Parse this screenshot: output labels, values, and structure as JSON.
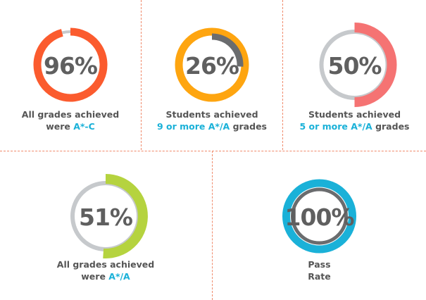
{
  "colors": {
    "track": "#c6c9cc",
    "dark": "#6a6c6e",
    "accent_text": "#1ab1d8",
    "divider": "#f08a6b",
    "value_text": "#5f5f5f"
  },
  "chart_data": [
    {
      "type": "donut",
      "value": 96,
      "label": "96%",
      "caption_line1": "All grades achieved",
      "caption_prefix": "were ",
      "caption_highlight": "A*-C",
      "caption_suffix": "",
      "main_color": "#fb5b2e",
      "arc_color": "#c6c9cc",
      "arc_width": "thin"
    },
    {
      "type": "donut",
      "value": 26,
      "label": "26%",
      "caption_line1": "Students achieved",
      "caption_prefix": "",
      "caption_highlight": "9 or more A*/A",
      "caption_suffix": " grades",
      "main_color": "#fea510",
      "arc_color": "#6a6c6e",
      "arc_width": "thin"
    },
    {
      "type": "donut",
      "value": 50,
      "label": "50%",
      "caption_line1": "Students achieved",
      "caption_prefix": "",
      "caption_highlight": "5 or more A*/A",
      "caption_suffix": " grades",
      "main_color": "#c6c9cc",
      "arc_color": "#f57373",
      "arc_width": "thick"
    },
    {
      "type": "donut",
      "value": 51,
      "label": "51%",
      "caption_line1": "All grades achieved",
      "caption_prefix": "were ",
      "caption_highlight": "A*/A",
      "caption_suffix": "",
      "main_color": "#c6c9cc",
      "arc_color": "#b5d33f",
      "arc_width": "thick"
    },
    {
      "type": "donut",
      "value": 100,
      "label": "100%",
      "caption_line1": "Pass",
      "caption_prefix": "",
      "caption_highlight": "",
      "caption_suffix": "Rate",
      "main_color": "#1ab1d8",
      "arc_color": "#6a6c6e",
      "arc_width": "thin"
    }
  ]
}
